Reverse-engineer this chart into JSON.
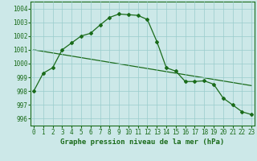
{
  "line1_x": [
    0,
    1,
    2,
    3,
    4,
    5,
    6,
    7,
    8,
    9,
    10,
    11,
    12,
    13,
    14,
    15,
    16,
    17,
    18,
    19,
    20,
    21,
    22,
    23
  ],
  "line1_y": [
    998.0,
    999.3,
    999.7,
    1001.0,
    1001.5,
    1002.0,
    1002.2,
    1002.8,
    1003.35,
    1003.6,
    1003.55,
    1003.5,
    1003.2,
    1001.6,
    999.7,
    999.45,
    998.7,
    998.7,
    998.75,
    998.5,
    997.5,
    997.0,
    996.5,
    996.3
  ],
  "line2_x": [
    0,
    23
  ],
  "line2_y": [
    1001.0,
    998.4
  ],
  "line_color": "#1a6b1a",
  "bg_color": "#cce8e8",
  "grid_color": "#99cccc",
  "xlabel": "Graphe pression niveau de la mer (hPa)",
  "ylim": [
    995.5,
    1004.5
  ],
  "xlim": [
    -0.3,
    23.3
  ],
  "yticks": [
    996,
    997,
    998,
    999,
    1000,
    1001,
    1002,
    1003,
    1004
  ],
  "xticks": [
    0,
    1,
    2,
    3,
    4,
    5,
    6,
    7,
    8,
    9,
    10,
    11,
    12,
    13,
    14,
    15,
    16,
    17,
    18,
    19,
    20,
    21,
    22,
    23
  ],
  "xlabel_fontsize": 6.5,
  "tick_fontsize": 5.5
}
